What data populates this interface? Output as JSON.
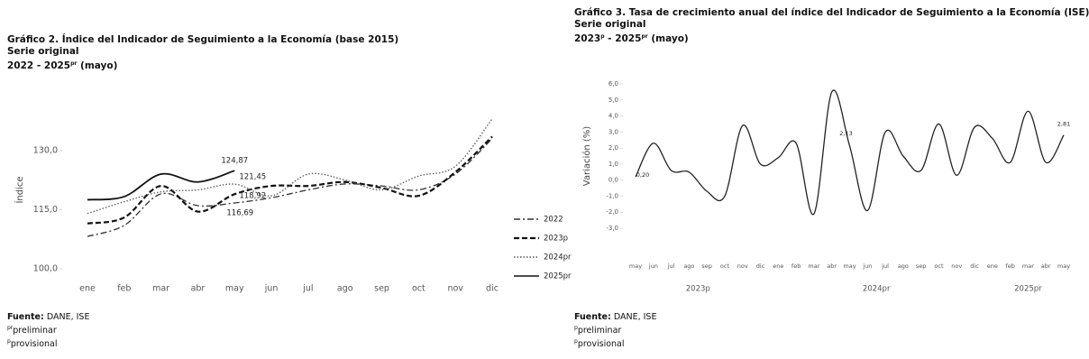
{
  "chart_data": [
    {
      "type": "line",
      "title": "Gráfico 2. Índice del Indicador de Seguimiento a la Economía (base 2015)",
      "subtitle": "Serie original",
      "period": [
        {
          "text": "2022 - 2025"
        },
        {
          "sup": "pr"
        },
        {
          "text": " (mayo)"
        }
      ],
      "y_label": "Índice",
      "categories": [
        "ene",
        "feb",
        "mar",
        "abr",
        "may",
        "jun",
        "jul",
        "ago",
        "sep",
        "oct",
        "nov",
        "dic"
      ],
      "series": [
        {
          "name": "2022",
          "color": "#333333",
          "dash": "dashdot",
          "values": [
            108.2,
            111,
            119,
            116,
            116.69,
            118,
            120,
            121.5,
            121,
            120,
            124,
            133
          ],
          "value_labels": [
            null,
            null,
            null,
            null,
            "116,69",
            null,
            null,
            null,
            null,
            null,
            null,
            null
          ]
        },
        {
          "name": "2023p",
          "color": "#111111",
          "dash": "dash",
          "values": [
            111.5,
            113,
            121,
            114.5,
            118.92,
            121,
            121,
            122,
            120.5,
            118.5,
            124.5,
            133.5
          ],
          "value_labels": [
            null,
            null,
            null,
            null,
            "118,92",
            null,
            null,
            null,
            null,
            null,
            null,
            null
          ]
        },
        {
          "name": "2024pr",
          "color": "#555555",
          "dash": "dot",
          "values": [
            114,
            117,
            119.5,
            120,
            121.45,
            118.5,
            124,
            122.5,
            120,
            123.5,
            126,
            138
          ],
          "value_labels": [
            null,
            null,
            null,
            null,
            "121,45",
            null,
            null,
            null,
            null,
            null,
            null,
            null
          ]
        },
        {
          "name": "2025pr",
          "color": "#111111",
          "dash": "solid",
          "values": [
            117.5,
            118.3,
            124,
            122,
            124.87,
            null,
            null,
            null,
            null,
            null,
            null,
            null
          ],
          "value_labels": [
            null,
            null,
            null,
            null,
            "124,87",
            null,
            null,
            null,
            null,
            null,
            null,
            null
          ]
        }
      ],
      "ylim": [
        100,
        140
      ],
      "yticks": [
        {
          "value": 100,
          "label": "100,0"
        },
        {
          "value": 115,
          "label": "115,0"
        },
        {
          "value": 130,
          "label": "130,0"
        }
      ],
      "legend_position": "right",
      "source_label": "Fuente:",
      "source": "DANE, ISE",
      "notes": [
        {
          "sup": "pr",
          "text": "preliminar"
        },
        {
          "sup": "p",
          "text": "provisional"
        }
      ]
    },
    {
      "type": "line",
      "title": "Gráfico 3. Tasa de crecimiento anual del índice del Indicador de Seguimiento a la Economía (ISE)",
      "subtitle": "Serie original",
      "period": [
        {
          "text": "2023"
        },
        {
          "sup": "p"
        },
        {
          "text": " - 2025"
        },
        {
          "sup": "pr"
        },
        {
          "text": " (mayo)"
        }
      ],
      "y_label": "Variación (%)",
      "categories": [
        "may",
        "jun",
        "jul",
        "ago",
        "sep",
        "oct",
        "nov",
        "dic",
        "ene",
        "feb",
        "mar",
        "abr",
        "may",
        "jun",
        "jul",
        "ago",
        "sep",
        "oct",
        "nov",
        "dic",
        "ene",
        "feb",
        "mar",
        "abr",
        "may"
      ],
      "x_group_labels": [
        "2023p",
        "2024pr",
        "2025pr"
      ],
      "color": "#222222",
      "values": [
        0.2,
        2.3,
        0.6,
        0.5,
        -0.7,
        -1.0,
        3.4,
        1.0,
        1.4,
        2.3,
        -2.1,
        5.5,
        2.13,
        -1.9,
        3.0,
        1.5,
        0.6,
        3.5,
        0.3,
        3.3,
        2.6,
        1.1,
        4.3,
        1.1,
        2.81
      ],
      "value_labels": [
        "0,20",
        null,
        null,
        null,
        null,
        null,
        null,
        null,
        null,
        null,
        null,
        null,
        "2,13",
        null,
        null,
        null,
        null,
        null,
        null,
        null,
        null,
        null,
        null,
        null,
        "2,81"
      ],
      "ylim": [
        -3,
        6
      ],
      "yticks": [
        {
          "value": -3,
          "label": "-3,0"
        },
        {
          "value": -2,
          "label": "-2,0"
        },
        {
          "value": -1,
          "label": "-1,0"
        },
        {
          "value": 0,
          "label": "0,0"
        },
        {
          "value": 1,
          "label": "1,0"
        },
        {
          "value": 2,
          "label": "2,0"
        },
        {
          "value": 3,
          "label": "3,0"
        },
        {
          "value": 4,
          "label": "4,0"
        },
        {
          "value": 5,
          "label": "5,0"
        },
        {
          "value": 6,
          "label": "6,0"
        }
      ],
      "source_label": "Fuente:",
      "source": "DANE, ISE",
      "notes": [
        {
          "sup": "p",
          "text": "preliminar"
        },
        {
          "sup": "p",
          "text": "provisional"
        }
      ]
    }
  ]
}
